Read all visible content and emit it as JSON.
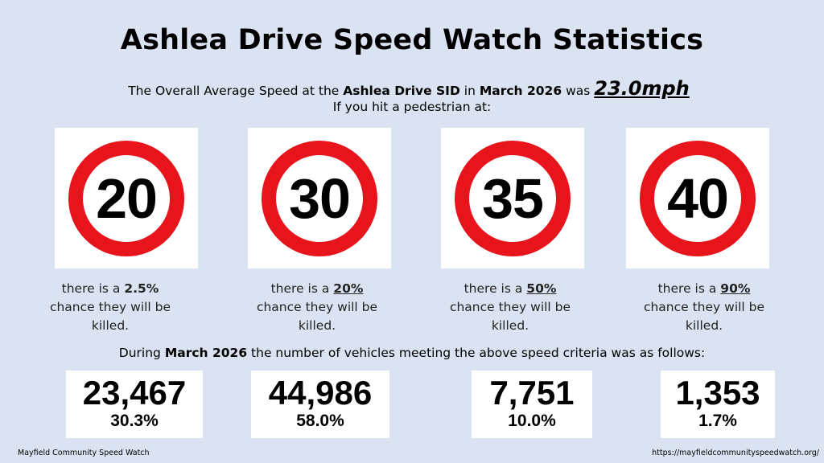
{
  "title": "Ashlea Drive Speed Watch Statistics",
  "intro": {
    "prefix": "The Overall Average Speed at the",
    "location": "Ashlea Drive SID",
    "in": "in",
    "month": "March 2026",
    "was": "was",
    "average_speed": "23.0mph",
    "line2": "If you hit a pedestrian at:"
  },
  "signs": [
    {
      "speed": "20",
      "pre": "there is a",
      "chance": "2.5%",
      "post": "chance they will be killed."
    },
    {
      "speed": "30",
      "pre": "there is a",
      "chance": "20%",
      "post": "chance they will be killed."
    },
    {
      "speed": "35",
      "pre": "there is a",
      "chance": "50%",
      "post": "chance they will be killed."
    },
    {
      "speed": "40",
      "pre": "there is a",
      "chance": "90%",
      "post": "chance they will be killed."
    }
  ],
  "during": {
    "prefix": "During",
    "month": "March 2026",
    "suffix": "the number of vehicles meeting the above speed criteria was as follows:"
  },
  "stats": [
    {
      "count": "23,467",
      "percent": "30.3%"
    },
    {
      "count": "44,986",
      "percent": "58.0%"
    },
    {
      "count": "7,751",
      "percent": "10.0%"
    },
    {
      "count": "1,353",
      "percent": "1.7%"
    }
  ],
  "footer": {
    "left": "Mayfield Community Speed Watch",
    "right": "https://mayfieldcommunityspeedwatch.org/"
  },
  "colors": {
    "background": "#dbe3f2",
    "sign_red": "#e8141b"
  }
}
